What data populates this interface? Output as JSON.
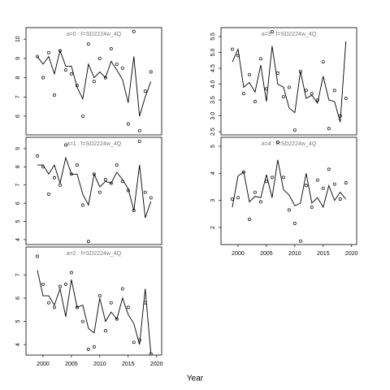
{
  "xlabel": "Year",
  "chart_data": [
    {
      "type": "line",
      "title": "a=0  :  f=SD2224w_4Q",
      "x": [
        1999,
        2000,
        2001,
        2002,
        2003,
        2004,
        2005,
        2006,
        2007,
        2008,
        2009,
        2010,
        2011,
        2012,
        2013,
        2014,
        2015,
        2016,
        2017,
        2018,
        2019
      ],
      "series": [
        {
          "mark": "line",
          "color": "#000000",
          "values": [
            9.1,
            8.7,
            9.1,
            8.2,
            9.4,
            8.6,
            8.6,
            7.5,
            6.9,
            8.7,
            8.0,
            8.3,
            8.0,
            8.85,
            8.4,
            7.9,
            6.7,
            9.1,
            6.0,
            7.0,
            7.8
          ]
        },
        {
          "mark": "point",
          "color": "#000000",
          "values": [
            9.1,
            8.0,
            9.3,
            7.1,
            9.4,
            8.4,
            8.2,
            7.6,
            6.0,
            9.75,
            7.8,
            9.0,
            8.0,
            9.5,
            8.7,
            8.5,
            5.6,
            10.4,
            5.25,
            7.3,
            8.3
          ]
        }
      ],
      "xlim": [
        1997,
        2020.9
      ],
      "ylim": [
        5.03,
        10.6
      ],
      "yticks": [
        6,
        7,
        8,
        9,
        10
      ]
    },
    {
      "type": "line",
      "title": "a=1  :  f=SD2224w_4Q",
      "x": [
        1999,
        2000,
        2001,
        2002,
        2003,
        2004,
        2005,
        2006,
        2007,
        2008,
        2009,
        2010,
        2011,
        2012,
        2013,
        2014,
        2015,
        2016,
        2017,
        2018,
        2019
      ],
      "series": [
        {
          "mark": "line",
          "color": "#000000",
          "values": [
            8.1,
            8.1,
            7.6,
            8.1,
            7.1,
            8.5,
            7.6,
            7.6,
            6.5,
            5.9,
            7.6,
            6.9,
            7.2,
            7.1,
            7.7,
            7.3,
            6.8,
            5.6,
            8.1,
            5.2,
            6.1
          ]
        },
        {
          "mark": "point",
          "color": "#000000",
          "values": [
            8.6,
            8.0,
            6.5,
            7.4,
            7.0,
            9.2,
            7.6,
            8.1,
            5.9,
            3.9,
            7.6,
            6.6,
            7.3,
            7.1,
            8.1,
            7.2,
            6.7,
            5.6,
            9.4,
            6.6,
            6.3
          ]
        }
      ],
      "xlim": [
        1997,
        2020.9
      ],
      "ylim": [
        3.73,
        9.62
      ],
      "yticks": [
        4,
        5,
        6,
        7,
        8,
        9
      ]
    },
    {
      "type": "line",
      "title": "a=2  :  f=SD2224w_4Q",
      "x": [
        1999,
        2000,
        2001,
        2002,
        2003,
        2004,
        2005,
        2006,
        2007,
        2008,
        2009,
        2010,
        2011,
        2012,
        2013,
        2014,
        2015,
        2016,
        2017,
        2018,
        2019
      ],
      "series": [
        {
          "mark": "line",
          "color": "#000000",
          "values": [
            7.2,
            6.1,
            6.1,
            5.7,
            6.4,
            5.2,
            6.8,
            5.6,
            5.7,
            4.7,
            4.5,
            6.0,
            5.0,
            5.4,
            5.1,
            6.0,
            5.3,
            4.9,
            4.0,
            6.4,
            3.6
          ]
        },
        {
          "mark": "point",
          "color": "#000000",
          "values": [
            7.8,
            6.6,
            5.8,
            5.6,
            6.5,
            6.6,
            7.1,
            5.6,
            5.0,
            3.8,
            3.9,
            6.1,
            4.6,
            5.8,
            5.1,
            6.4,
            5.6,
            4.1,
            4.2,
            5.8,
            3.6
          ]
        }
      ],
      "xlim": [
        1997,
        2020.9
      ],
      "xticks": [
        2000,
        2005,
        2010,
        2015,
        2020
      ],
      "ylim": [
        3.55,
        8.2
      ],
      "yticks": [
        4,
        5,
        6,
        7
      ]
    },
    {
      "type": "line",
      "title": "a=3  :  f=SD2224w_4Q",
      "x": [
        1999,
        2000,
        2001,
        2002,
        2003,
        2004,
        2005,
        2006,
        2007,
        2008,
        2009,
        2010,
        2011,
        2012,
        2013,
        2014,
        2015,
        2016,
        2017,
        2018,
        2019
      ],
      "series": [
        {
          "mark": "line",
          "color": "#000000",
          "values": [
            4.7,
            5.1,
            3.9,
            4.05,
            3.75,
            4.6,
            3.45,
            5.2,
            4.0,
            3.9,
            3.25,
            3.1,
            4.4,
            3.55,
            3.65,
            3.4,
            4.25,
            3.5,
            3.45,
            2.8,
            5.35
          ]
        },
        {
          "mark": "point",
          "color": "#000000",
          "values": [
            5.1,
            4.9,
            3.7,
            4.3,
            3.45,
            4.8,
            3.85,
            5.65,
            4.35,
            3.6,
            3.9,
            2.55,
            4.4,
            3.8,
            3.7,
            3.5,
            4.7,
            2.6,
            3.8,
            3.0,
            3.55
          ]
        }
      ],
      "xlim": [
        1997,
        2020.9
      ],
      "ylim": [
        2.4,
        5.78
      ],
      "yticks": [
        {
          "value": 2.5,
          "label": "2.5"
        },
        {
          "value": 3,
          "label": "3.0"
        },
        {
          "value": 3.5,
          "label": "3.5"
        },
        {
          "value": 4,
          "label": "4.0"
        },
        {
          "value": 4.5,
          "label": "4.5"
        },
        {
          "value": 5,
          "label": "5.0"
        },
        {
          "value": 5.5,
          "label": "5.5"
        }
      ]
    },
    {
      "type": "line",
      "title": "a=4  :  f=SD2224w_4Q",
      "x": [
        1999,
        2000,
        2001,
        2002,
        2003,
        2004,
        2005,
        2006,
        2007,
        2008,
        2009,
        2010,
        2011,
        2012,
        2013,
        2014,
        2015,
        2016,
        2017,
        2018,
        2019
      ],
      "series": [
        {
          "mark": "line",
          "color": "#000000",
          "values": [
            2.75,
            3.9,
            4.05,
            2.95,
            3.15,
            3.1,
            3.95,
            3.1,
            4.5,
            3.4,
            3.2,
            2.8,
            2.9,
            4.0,
            2.9,
            3.1,
            2.75,
            3.55,
            3.0,
            3.3,
            3.05
          ]
        },
        {
          "mark": "point",
          "color": "#000000",
          "values": [
            3.05,
            3.1,
            4.05,
            2.3,
            3.3,
            2.95,
            3.7,
            3.85,
            5.15,
            3.85,
            2.65,
            2.15,
            1.5,
            3.55,
            2.75,
            3.75,
            3.45,
            4.15,
            3.6,
            3.05,
            3.65
          ]
        }
      ],
      "xlim": [
        1997,
        2020.9
      ],
      "xticks": [
        2000,
        2005,
        2010,
        2015,
        2020
      ],
      "ylim": [
        1.37,
        5.33
      ],
      "yticks": [
        2,
        3,
        4,
        5
      ]
    }
  ]
}
